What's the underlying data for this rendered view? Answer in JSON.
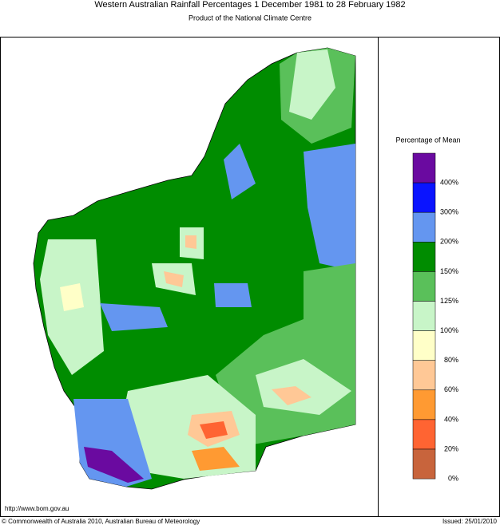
{
  "header": {
    "title": "Western Australian Rainfall Percentages 1 December 1981 to 28 February 1982",
    "subtitle": "Product of the National Climate Centre"
  },
  "legend": {
    "title": "Percentage of Mean",
    "colors": [
      "#6a0aa0",
      "#0a14ff",
      "#6496f0",
      "#008c00",
      "#5ac05a",
      "#c8f5c8",
      "#ffffc8",
      "#ffc896",
      "#ff9a32",
      "#ff6432",
      "#c8643c"
    ],
    "labels": [
      "400%",
      "300%",
      "200%",
      "150%",
      "125%",
      "100%",
      "80%",
      "60%",
      "40%",
      "20%",
      "0%"
    ]
  },
  "footer": {
    "url": "http://www.bom.gov.au",
    "copyright": "© Commonwealth of Australia 2010, Australian Bureau of Meteorology",
    "issued": "Issued: 25/01/2010"
  }
}
